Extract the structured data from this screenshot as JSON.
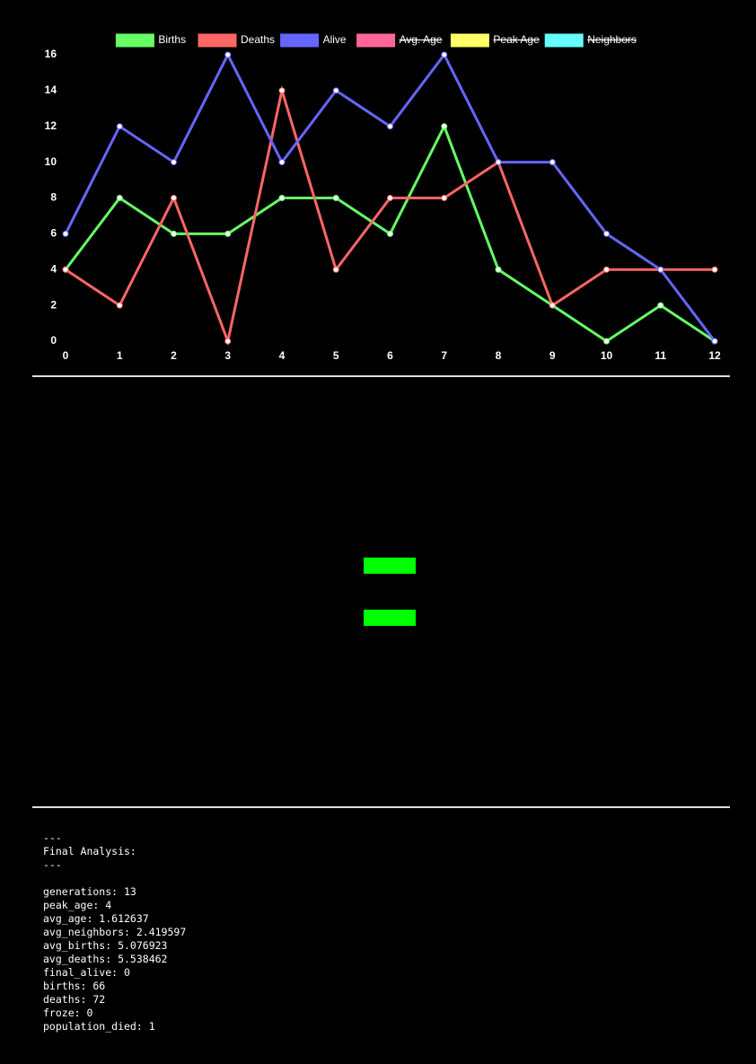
{
  "chart_data": {
    "type": "line",
    "x": [
      0,
      1,
      2,
      3,
      4,
      5,
      6,
      7,
      8,
      9,
      10,
      11,
      12
    ],
    "xlim": [
      0,
      12
    ],
    "xticks": [
      0,
      1,
      2,
      3,
      4,
      5,
      6,
      7,
      8,
      9,
      10,
      11,
      12
    ],
    "ylim": [
      0,
      16
    ],
    "yticks": [
      0,
      2,
      4,
      6,
      8,
      10,
      12,
      14,
      16
    ],
    "grid": false,
    "legend": "top",
    "series": [
      {
        "name": "Births",
        "color": "#66ff66",
        "values": [
          4,
          8,
          6,
          6,
          8,
          8,
          6,
          12,
          4,
          2,
          0,
          2,
          0
        ]
      },
      {
        "name": "Deaths",
        "color": "#ff6666",
        "values": [
          4,
          2,
          8,
          0,
          14,
          4,
          8,
          8,
          10,
          2,
          4,
          4,
          4
        ]
      },
      {
        "name": "Alive",
        "color": "#6666ff",
        "values": [
          6,
          12,
          10,
          16,
          10,
          14,
          12,
          16,
          10,
          10,
          6,
          4,
          0
        ]
      },
      {
        "name": "Avg. Age",
        "color": "#ff6699",
        "hidden": true
      },
      {
        "name": "Peak Age",
        "color": "#ffff66",
        "hidden": true
      },
      {
        "name": "Neighbors",
        "color": "#66ffff",
        "hidden": true
      }
    ]
  },
  "analysis": {
    "header": [
      "---",
      "Final Analysis:",
      "---"
    ],
    "lines": [
      "generations: 13",
      "peak_age: 4",
      "avg_age: 1.612637",
      "avg_neighbors: 2.419597",
      "avg_births: 5.076923",
      "avg_deaths: 5.538462",
      "final_alive: 0",
      "births: 66",
      "deaths: 72",
      "froze: 0",
      "population_died: 1"
    ]
  }
}
